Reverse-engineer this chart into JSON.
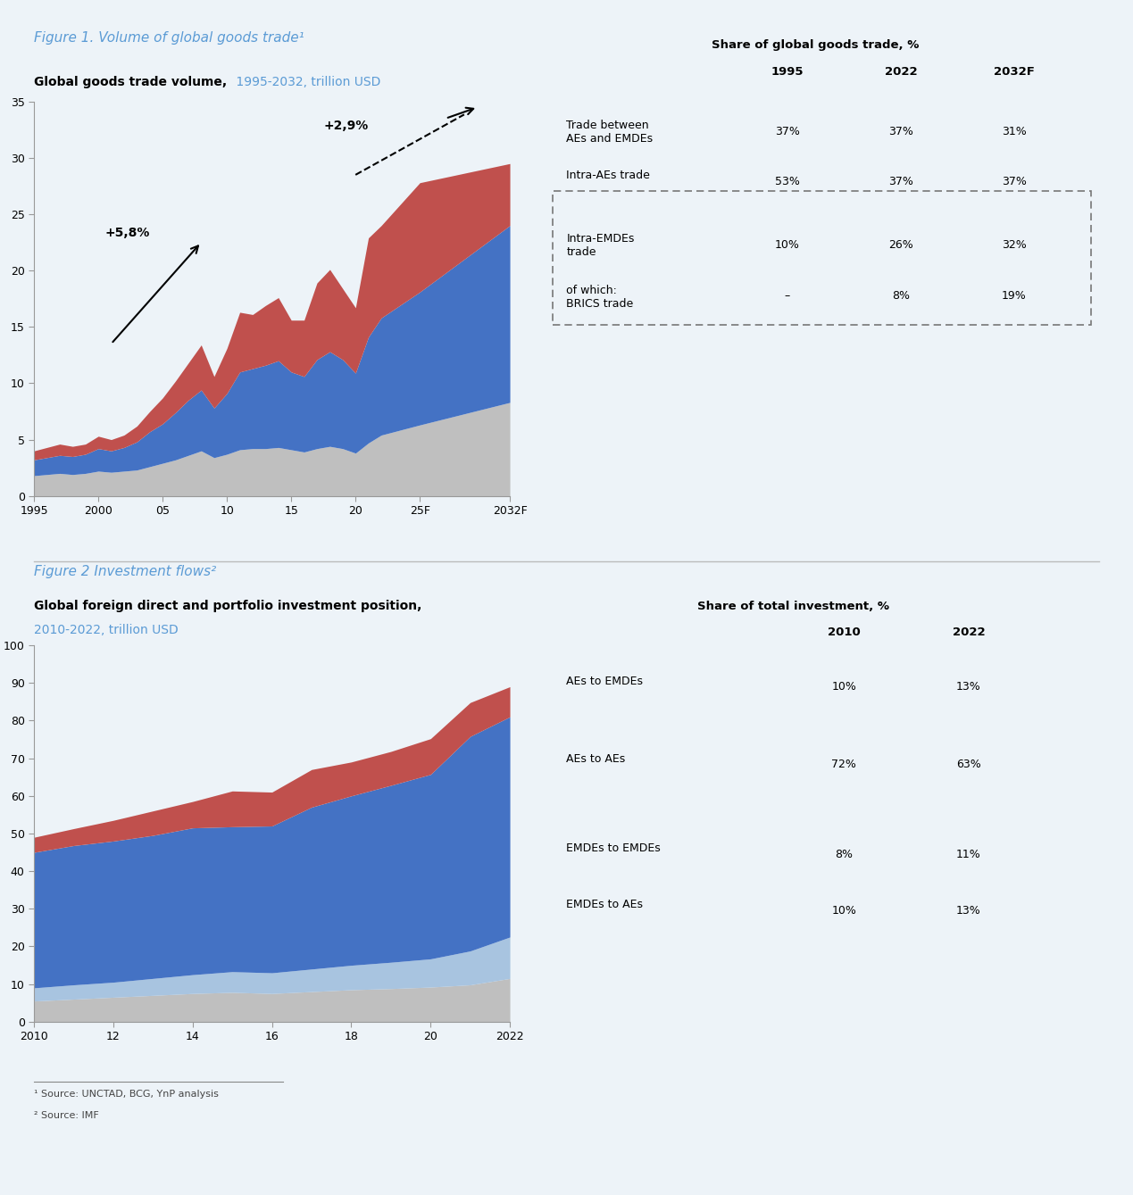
{
  "fig1_title_fig": "Figure 1. Volume of global goods trade¹",
  "fig1_chart_title_bold": "Global goods trade volume,",
  "fig1_chart_title_normal": " 1995-2032, trillion USD",
  "fig1_years": [
    1995,
    1996,
    1997,
    1998,
    1999,
    2000,
    2001,
    2002,
    2003,
    2004,
    2005,
    2006,
    2007,
    2008,
    2009,
    2010,
    2011,
    2012,
    2013,
    2014,
    2015,
    2016,
    2017,
    2018,
    2019,
    2020,
    2021,
    2022,
    2025,
    2032
  ],
  "fig1_gray": [
    1.8,
    1.9,
    2.0,
    1.9,
    2.0,
    2.2,
    2.1,
    2.2,
    2.3,
    2.6,
    2.9,
    3.2,
    3.6,
    4.0,
    3.4,
    3.7,
    4.1,
    4.2,
    4.2,
    4.3,
    4.1,
    3.9,
    4.2,
    4.4,
    4.2,
    3.8,
    4.7,
    5.4,
    6.3,
    8.3
  ],
  "fig1_blue": [
    1.4,
    1.5,
    1.6,
    1.6,
    1.7,
    2.0,
    1.9,
    2.1,
    2.5,
    3.1,
    3.5,
    4.2,
    4.9,
    5.4,
    4.4,
    5.4,
    6.9,
    7.1,
    7.4,
    7.7,
    6.9,
    6.7,
    7.9,
    8.4,
    7.9,
    7.1,
    9.4,
    10.4,
    11.8,
    15.7
  ],
  "fig1_red": [
    0.8,
    0.9,
    1.0,
    0.9,
    0.9,
    1.1,
    1.0,
    1.1,
    1.4,
    1.8,
    2.3,
    2.8,
    3.3,
    4.0,
    2.8,
    4.0,
    5.3,
    4.8,
    5.3,
    5.6,
    4.6,
    5.0,
    6.8,
    7.3,
    6.3,
    5.8,
    8.8,
    8.2,
    9.7,
    5.5
  ],
  "fig1_ylim": [
    0,
    35
  ],
  "fig1_yticks": [
    0,
    5,
    10,
    15,
    20,
    25,
    30,
    35
  ],
  "fig1_xtick_labels": [
    "1995",
    "2000",
    "05",
    "10",
    "15",
    "20",
    "25F",
    "2032F"
  ],
  "fig1_xtick_positions": [
    1995,
    2000,
    2005,
    2010,
    2015,
    2020,
    2025,
    2032
  ],
  "fig1_table_header_title": "Share of global goods trade, %",
  "fig1_table_rows": [
    [
      "Trade between\nAEs and EMDEs",
      "37%",
      "37%",
      "31%"
    ],
    [
      "Intra-AEs trade",
      "53%",
      "37%",
      "37%"
    ],
    [
      "Intra-EMDEs\ntrade",
      "10%",
      "26%",
      "32%"
    ],
    [
      "of which:\nBRICS trade",
      "–",
      "8%",
      "19%"
    ]
  ],
  "fig2_title_fig": "Figure 2 Investment flows²",
  "fig2_chart_title_bold": "Global foreign direct and portfolio investment position,",
  "fig2_chart_title_normal": "2010-2022, trillion USD",
  "fig2_years": [
    2010,
    2011,
    2012,
    2013,
    2014,
    2015,
    2016,
    2017,
    2018,
    2019,
    2020,
    2021,
    2022
  ],
  "fig2_gray": [
    5.5,
    6.0,
    6.5,
    7.0,
    7.5,
    7.8,
    7.5,
    8.0,
    8.5,
    8.8,
    9.2,
    9.8,
    11.5
  ],
  "fig2_light_blue": [
    3.5,
    3.8,
    4.0,
    4.5,
    5.0,
    5.5,
    5.5,
    6.0,
    6.5,
    7.0,
    7.5,
    9.0,
    11.0
  ],
  "fig2_blue": [
    36.0,
    37.0,
    37.5,
    38.0,
    39.0,
    38.5,
    39.0,
    43.0,
    45.0,
    47.0,
    49.0,
    57.0,
    58.5
  ],
  "fig2_red": [
    4.0,
    4.5,
    5.5,
    6.5,
    7.0,
    9.5,
    9.0,
    10.0,
    9.0,
    9.0,
    9.5,
    9.0,
    8.0
  ],
  "fig2_ylim": [
    0,
    100
  ],
  "fig2_yticks": [
    0,
    10,
    20,
    30,
    40,
    50,
    60,
    70,
    80,
    90,
    100
  ],
  "fig2_xtick_labels": [
    "2010",
    "12",
    "14",
    "16",
    "18",
    "20",
    "2022"
  ],
  "fig2_xtick_positions": [
    2010,
    2012,
    2014,
    2016,
    2018,
    2020,
    2022
  ],
  "fig2_table_header_title": "Share of total investment, %",
  "fig2_table_rows": [
    [
      "AEs to EMDEs",
      "10%",
      "13%"
    ],
    [
      "AEs to AEs",
      "72%",
      "63%"
    ],
    [
      "EMDEs to EMDEs",
      "8%",
      "11%"
    ],
    [
      "EMDEs to AEs",
      "10%",
      "13%"
    ]
  ],
  "color_red": "#C0504D",
  "color_blue": "#4472C4",
  "color_light_blue": "#A8C4E0",
  "color_gray": "#BFBFBF",
  "color_bg": "#EDF3F8",
  "color_fig_title": "#5B9BD5",
  "footnote1": "¹ Source: UNCTAD, BCG, YnP analysis",
  "footnote2": "² Source: IMF"
}
